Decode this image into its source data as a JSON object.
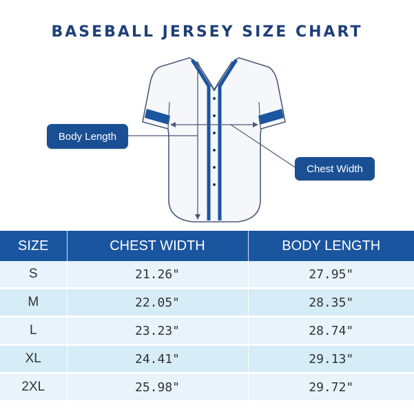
{
  "title": "BASEBALL JERSEY SIZE CHART",
  "callouts": {
    "body_length": "Body Length",
    "chest_width": "Chest Width"
  },
  "colors": {
    "title": "#1e3f78",
    "accent_blue": "#1a55a0",
    "row_light": "#e8f3fb",
    "row_dark": "#d6ecf7"
  },
  "table": {
    "headers": [
      "SIZE",
      "CHEST WIDTH",
      "BODY LENGTH"
    ],
    "rows": [
      {
        "size": "S",
        "chest": "21.26\"",
        "length": "27.95\""
      },
      {
        "size": "M",
        "chest": "22.05\"",
        "length": "28.35\""
      },
      {
        "size": "L",
        "chest": "23.23\"",
        "length": "28.74\""
      },
      {
        "size": "XL",
        "chest": "24.41\"",
        "length": "29.13\""
      },
      {
        "size": "2XL",
        "chest": "25.98\"",
        "length": "29.72\""
      }
    ]
  }
}
